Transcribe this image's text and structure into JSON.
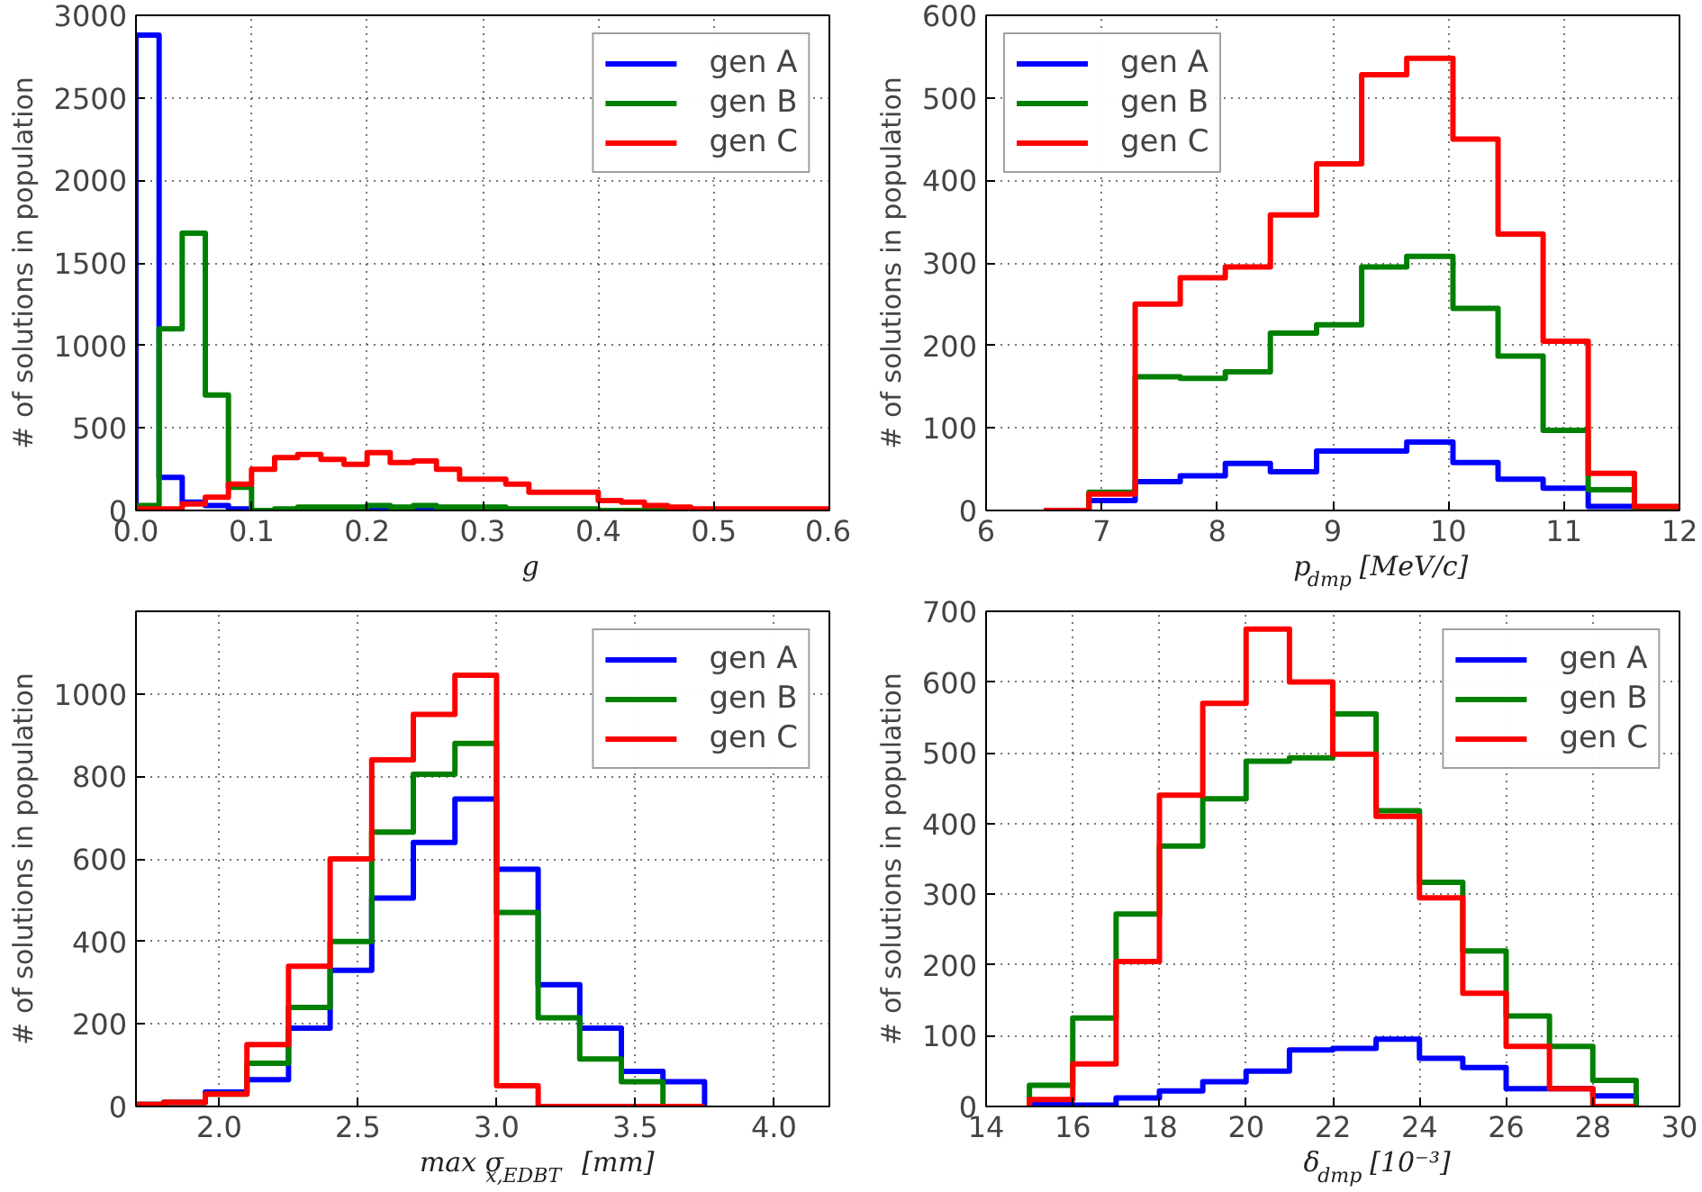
{
  "chart_data": [
    {
      "type": "histogram",
      "xlabel": "g",
      "ylabel": "# of solutions in population",
      "xlim": [
        0,
        0.6
      ],
      "ylim": [
        0,
        3000
      ],
      "xticks": [
        {
          "value": 0,
          "label": "0.0"
        },
        0.1,
        0.2,
        0.3,
        0.4,
        0.5,
        0.6
      ],
      "yticks": [
        0,
        500,
        1000,
        1500,
        2000,
        2500,
        3000
      ],
      "grid": true,
      "legend": "top right",
      "line_style": "solid",
      "bins": [
        0,
        0.02,
        0.04,
        0.06,
        0.08,
        0.1,
        0.12,
        0.14,
        0.16,
        0.18,
        0.2,
        0.22,
        0.24,
        0.26,
        0.28,
        0.3,
        0.32,
        0.34,
        0.36,
        0.38,
        0.4,
        0.42,
        0.44,
        0.46,
        0.48,
        0.5,
        0.52,
        0.54,
        0.56,
        0.58,
        0.6
      ],
      "series": [
        {
          "name": "gen A",
          "color": "#0000ff",
          "values": [
            2880,
            200,
            50,
            30,
            10,
            0,
            0,
            0,
            0,
            0,
            0,
            0,
            0,
            0,
            0,
            0,
            0,
            0,
            0,
            0,
            0,
            0,
            0,
            0,
            0,
            0,
            0,
            0,
            0,
            0
          ]
        },
        {
          "name": "gen B",
          "color": "#008000",
          "values": [
            30,
            1100,
            1680,
            700,
            140,
            0,
            10,
            20,
            20,
            20,
            30,
            20,
            30,
            20,
            20,
            20,
            10,
            10,
            10,
            10,
            0,
            0,
            0,
            0,
            0,
            0,
            0,
            0,
            0,
            0
          ]
        },
        {
          "name": "gen C",
          "color": "#ff0000",
          "values": [
            10,
            10,
            40,
            80,
            160,
            250,
            320,
            340,
            310,
            280,
            350,
            290,
            300,
            250,
            190,
            190,
            160,
            110,
            110,
            110,
            60,
            50,
            30,
            20,
            10,
            10,
            10,
            10,
            10,
            10
          ]
        }
      ]
    },
    {
      "type": "histogram",
      "xlabel": "p$_{dmp}$ [MeV/c]",
      "ylabel": "# of solutions in population",
      "xlim": [
        6,
        12
      ],
      "ylim": [
        0,
        600
      ],
      "xticks": [
        6,
        7,
        8,
        9,
        10,
        11,
        12
      ],
      "yticks": [
        0,
        100,
        200,
        300,
        400,
        500,
        600
      ],
      "grid": true,
      "legend": "top left",
      "line_style": "solid",
      "bins": [
        6.5,
        6.89,
        7.29,
        7.68,
        8.07,
        8.46,
        8.86,
        9.25,
        9.64,
        10.04,
        10.43,
        10.82,
        11.21,
        11.61,
        12.0
      ],
      "series": [
        {
          "name": "gen A",
          "color": "#0000ff",
          "values": [
            0,
            12,
            35,
            42,
            57,
            47,
            72,
            72,
            83,
            58,
            38,
            27,
            5,
            0
          ]
        },
        {
          "name": "gen B",
          "color": "#008000",
          "values": [
            0,
            22,
            162,
            160,
            168,
            215,
            225,
            295,
            308,
            245,
            187,
            97,
            25,
            0
          ]
        },
        {
          "name": "gen C",
          "color": "#ff0000",
          "values": [
            0,
            20,
            250,
            282,
            295,
            358,
            420,
            528,
            548,
            450,
            335,
            205,
            45,
            5
          ]
        }
      ]
    },
    {
      "type": "histogram",
      "xlabel": "max σ$_{x,EDBT}$ [mm]",
      "ylabel": "# of solutions in population",
      "xlim": [
        1.7,
        4.2
      ],
      "ylim": [
        0,
        1200
      ],
      "xticks": [
        {
          "value": 2,
          "label": "2.0"
        },
        2.5,
        {
          "value": 3,
          "label": "3.0"
        },
        3.5,
        {
          "value": 4,
          "label": "4.0"
        }
      ],
      "yticks": [
        0,
        200,
        400,
        600,
        800,
        1000
      ],
      "grid": true,
      "legend": "top right",
      "line_style": "solid",
      "bins": [
        1.65,
        1.8,
        1.95,
        2.1,
        2.25,
        2.4,
        2.55,
        2.7,
        2.85,
        3.0,
        3.15,
        3.3,
        3.45,
        3.6,
        3.75
      ],
      "series": [
        {
          "name": "gen A",
          "color": "#0000ff",
          "values": [
            5,
            10,
            35,
            65,
            190,
            330,
            505,
            640,
            745,
            575,
            295,
            190,
            85,
            60
          ]
        },
        {
          "name": "gen B",
          "color": "#008000",
          "values": [
            5,
            10,
            30,
            105,
            240,
            400,
            665,
            805,
            880,
            470,
            215,
            115,
            60,
            0
          ]
        },
        {
          "name": "gen C",
          "color": "#ff0000",
          "values": [
            5,
            10,
            30,
            150,
            340,
            600,
            840,
            950,
            1045,
            50,
            0,
            0,
            0,
            0
          ]
        }
      ]
    },
    {
      "type": "histogram",
      "xlabel": "δ$_{dmp}$ [10⁻³]",
      "ylabel": "# of solutions in population",
      "xlim": [
        14,
        30
      ],
      "ylim": [
        0,
        700
      ],
      "xticks": [
        14,
        16,
        18,
        20,
        22,
        24,
        26,
        28,
        30
      ],
      "yticks": [
        0,
        100,
        200,
        300,
        400,
        500,
        600,
        700
      ],
      "grid": true,
      "legend": "top right",
      "line_style": "solid",
      "bins": [
        15,
        16,
        17,
        18,
        19,
        20,
        21,
        22,
        23,
        24,
        25,
        26,
        27,
        28,
        29
      ],
      "series": [
        {
          "name": "gen A",
          "color": "#0000ff",
          "values": [
            3,
            2,
            12,
            22,
            35,
            50,
            80,
            82,
            95,
            68,
            55,
            25,
            25,
            15
          ]
        },
        {
          "name": "gen B",
          "color": "#008000",
          "values": [
            30,
            125,
            272,
            368,
            435,
            488,
            493,
            555,
            418,
            317,
            220,
            128,
            85,
            37
          ]
        },
        {
          "name": "gen C",
          "color": "#ff0000",
          "values": [
            10,
            60,
            205,
            440,
            570,
            675,
            600,
            498,
            410,
            295,
            160,
            85,
            25,
            0
          ]
        }
      ]
    }
  ]
}
